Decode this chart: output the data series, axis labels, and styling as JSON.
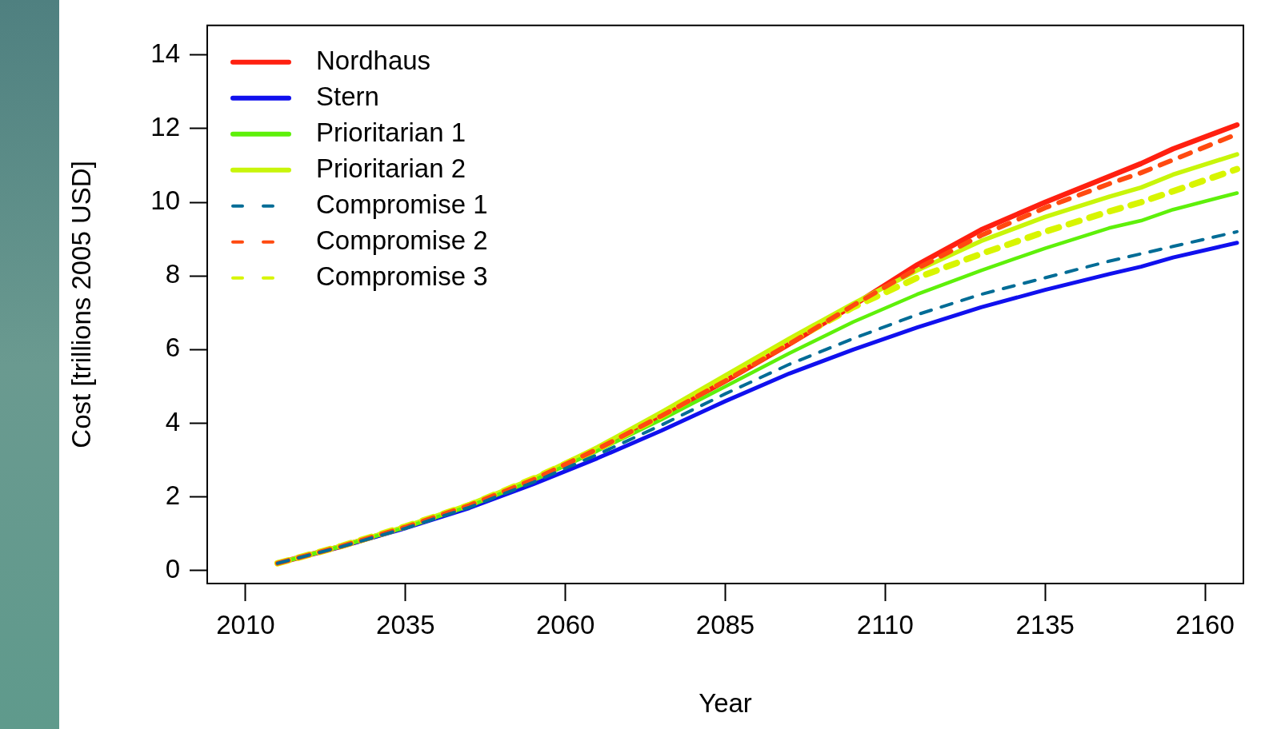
{
  "chart_data": {
    "type": "line",
    "xlabel": "Year",
    "ylabel": "Cost [trillions 2005 USD]",
    "x": [
      2015,
      2025,
      2035,
      2045,
      2055,
      2065,
      2075,
      2085,
      2095,
      2105,
      2115,
      2125,
      2135,
      2145,
      2150,
      2155,
      2165
    ],
    "xlim": [
      2004,
      2166
    ],
    "xticks": [
      2010,
      2035,
      2060,
      2085,
      2110,
      2135,
      2160
    ],
    "ylim": [
      -0.35,
      14.8
    ],
    "yticks": [
      0,
      2,
      4,
      6,
      8,
      10,
      12,
      14
    ],
    "legend": "top left",
    "series": [
      {
        "name": "Nordhaus",
        "color": "#ff2010",
        "line_style": "solid",
        "values": [
          0.2,
          0.66,
          1.18,
          1.77,
          2.47,
          3.3,
          4.2,
          5.15,
          6.15,
          7.2,
          8.3,
          9.25,
          10.0,
          10.7,
          11.05,
          11.45,
          12.1
        ]
      },
      {
        "name": "Stern",
        "color": "#1010ee",
        "line_style": "solid",
        "values": [
          0.2,
          0.65,
          1.15,
          1.7,
          2.35,
          3.05,
          3.8,
          4.6,
          5.35,
          6.0,
          6.6,
          7.15,
          7.62,
          8.05,
          8.25,
          8.5,
          8.9
        ]
      },
      {
        "name": "Prioritarian 1",
        "color": "#5ef00a",
        "line_style": "solid",
        "values": [
          0.2,
          0.66,
          1.17,
          1.75,
          2.45,
          3.25,
          4.1,
          5.0,
          5.9,
          6.75,
          7.5,
          8.15,
          8.75,
          9.3,
          9.5,
          9.8,
          10.25
        ]
      },
      {
        "name": "Prioritarian 2",
        "color": "#c8f50a",
        "line_style": "solid",
        "values": [
          0.2,
          0.67,
          1.2,
          1.8,
          2.5,
          3.35,
          4.3,
          5.3,
          6.3,
          7.25,
          8.15,
          8.95,
          9.6,
          10.15,
          10.4,
          10.75,
          11.3
        ]
      },
      {
        "name": "Compromise 1",
        "color": "#006c96",
        "line_style": "dashed",
        "values": [
          0.2,
          0.65,
          1.15,
          1.72,
          2.4,
          3.15,
          3.95,
          4.8,
          5.6,
          6.3,
          6.95,
          7.5,
          7.95,
          8.4,
          8.6,
          8.8,
          9.2
        ]
      },
      {
        "name": "Compromise 2",
        "color": "#ff4a10",
        "line_style": "dashed",
        "values": [
          0.2,
          0.66,
          1.18,
          1.77,
          2.47,
          3.3,
          4.2,
          5.15,
          6.15,
          7.2,
          8.2,
          9.1,
          9.85,
          10.5,
          10.8,
          11.15,
          11.85
        ]
      },
      {
        "name": "Compromise 3",
        "color": "#d8f500",
        "line_style": "dashed",
        "values": [
          0.2,
          0.67,
          1.2,
          1.78,
          2.5,
          3.3,
          4.2,
          5.2,
          6.2,
          7.15,
          7.95,
          8.6,
          9.2,
          9.75,
          10.0,
          10.3,
          10.9
        ]
      }
    ]
  }
}
